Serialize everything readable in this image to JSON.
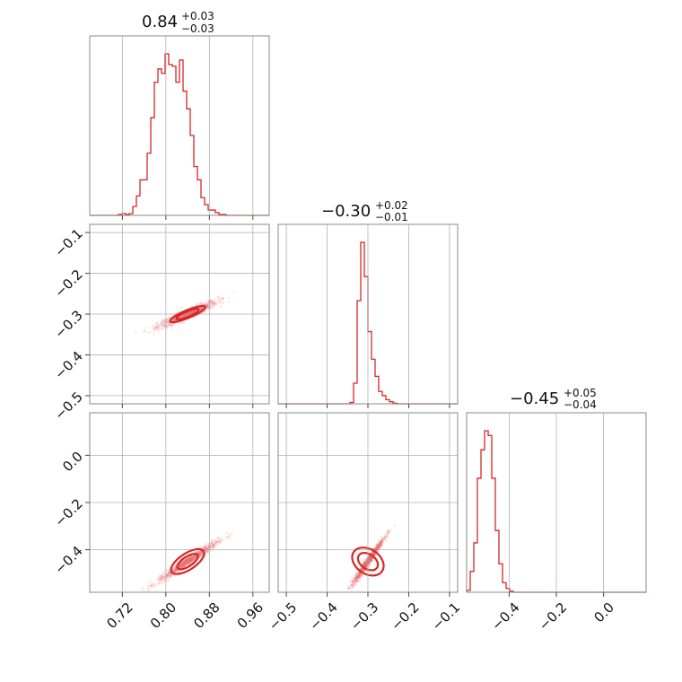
{
  "chart_data": {
    "type": "corner",
    "series_color": "#d62728",
    "grid": true,
    "params": [
      {
        "title_value": "0.84",
        "err_plus": "+0.03",
        "err_minus": "−0.03",
        "mean": 0.84,
        "sd": 0.025,
        "range": [
          0.66,
          0.99
        ],
        "ticks": [
          0.72,
          0.8,
          0.88,
          0.96
        ],
        "ticklabels": [
          "0.72",
          "0.80",
          "0.88",
          "0.96"
        ],
        "hist": {
          "start": 0.66,
          "binwidth": 0.0066,
          "heights": [
            0,
            0,
            0,
            0,
            0,
            0,
            0,
            0,
            1,
            2,
            1,
            2,
            10,
            22,
            40,
            40,
            70,
            110,
            150,
            165,
            160,
            182,
            170,
            168,
            150,
            175,
            140,
            120,
            90,
            55,
            40,
            20,
            12,
            6,
            6,
            3,
            1,
            1,
            0,
            0,
            0,
            0,
            0,
            0,
            0,
            0,
            0,
            0,
            0,
            0
          ]
        }
      },
      {
        "title_value": "−0.30",
        "err_plus": "+0.02",
        "err_minus": "−0.01",
        "mean": -0.3,
        "sd": 0.016,
        "range": [
          -0.52,
          -0.08
        ],
        "ticks": [
          -0.5,
          -0.4,
          -0.3,
          -0.2,
          -0.1
        ],
        "ticklabels": [
          "−0.5",
          "−0.4",
          "−0.3",
          "−0.2",
          "−0.1"
        ],
        "hist": {
          "start": -0.52,
          "binwidth": 0.0088,
          "heights": [
            0,
            0,
            0,
            0,
            0,
            0,
            0,
            0,
            0,
            0,
            0,
            0,
            0,
            0,
            0,
            0,
            0,
            0,
            0,
            0,
            2,
            30,
            150,
            235,
            185,
            105,
            65,
            40,
            18,
            12,
            6,
            3,
            1,
            0,
            0,
            0,
            0,
            0,
            0,
            0,
            0,
            0,
            0,
            0,
            0,
            0,
            0,
            0,
            0,
            0
          ]
        }
      },
      {
        "title_value": "−0.45",
        "err_plus": "+0.05",
        "err_minus": "−0.04",
        "mean": -0.45,
        "sd": 0.035,
        "range": [
          -0.58,
          0.18
        ],
        "ticks": [
          -0.4,
          -0.2,
          0.0
        ],
        "ticklabels": [
          "−0.4",
          "−0.2",
          "0.0"
        ],
        "ticks_y": [
          -0.4,
          -0.2,
          0.0
        ],
        "ticklabels_y": [
          "−0.4",
          "−0.2",
          "0.0"
        ],
        "hist": {
          "start": -0.58,
          "binwidth": 0.0152,
          "heights": [
            2,
            22,
            52,
            120,
            150,
            170,
            165,
            120,
            65,
            30,
            10,
            4,
            1,
            0,
            0,
            0,
            0,
            0,
            0,
            0,
            0,
            0,
            0,
            0,
            0,
            0,
            0,
            0,
            0,
            0,
            0,
            0,
            0,
            0,
            0,
            0,
            0,
            0,
            0,
            0,
            0,
            0,
            0,
            0,
            0,
            0,
            0,
            0,
            0,
            0
          ]
        }
      }
    ],
    "param1_y_ticks": [
      -0.1,
      -0.2,
      -0.3,
      -0.4,
      -0.5
    ],
    "param1_y_ticklabels": [
      "−0.1",
      "−0.2",
      "−0.3",
      "−0.4",
      "−0.5"
    ],
    "pairs": [
      {
        "x_param": 0,
        "y_param": 1,
        "slope": 0.55,
        "intercept": -0.762,
        "scatter_sd_x": 0.025,
        "scatter_sd_y": 0.006,
        "contour_rx": [
          0.035,
          0.022
        ],
        "contour_ry": [
          0.012,
          0.007
        ]
      },
      {
        "x_param": 0,
        "y_param": 2,
        "slope": 1.5,
        "intercept": -1.71,
        "scatter_sd_x": 0.025,
        "scatter_sd_y": 0.01,
        "contour_rx": [
          0.035,
          0.022
        ],
        "contour_ry": [
          0.025,
          0.015
        ]
      },
      {
        "x_param": 1,
        "y_param": 2,
        "slope": 2.5,
        "intercept": 0.3,
        "scatter_sd_x": 0.018,
        "scatter_sd_y": 0.01,
        "contour_rx": [
          0.03,
          0.018
        ],
        "contour_ry": [
          0.07,
          0.045
        ]
      }
    ]
  }
}
